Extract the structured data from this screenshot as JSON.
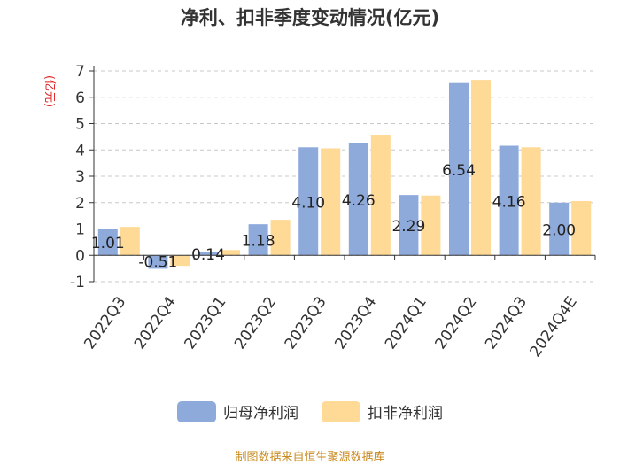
{
  "chart_data": {
    "type": "bar",
    "title": "净利、扣非季度变动情况(亿元)",
    "ylabel": "(亿元)",
    "ylabel_color": "#e02020",
    "ylim": [
      -1,
      7
    ],
    "yticks": [
      -1,
      0,
      1,
      2,
      3,
      4,
      5,
      6,
      7
    ],
    "grid": true,
    "legend_position": "bottom",
    "categories": [
      "2022Q3",
      "2022Q4",
      "2023Q1",
      "2023Q2",
      "2023Q3",
      "2023Q4",
      "2024Q1",
      "2024Q2",
      "2024Q3",
      "2024Q4E"
    ],
    "series": [
      {
        "name": "归母净利润",
        "color": "#8eaadb",
        "values": [
          1.01,
          -0.51,
          0.14,
          1.18,
          4.1,
          4.26,
          2.29,
          6.54,
          4.16,
          2.0
        ],
        "labels": [
          "1.01",
          "-0.51",
          "0.14",
          "1.18",
          "4.10",
          "4.26",
          "2.29",
          "6.54",
          "4.16",
          "2.00"
        ]
      },
      {
        "name": "扣非净利润",
        "color": "#ffd996",
        "values": [
          1.08,
          -0.4,
          0.2,
          1.35,
          4.06,
          4.58,
          2.27,
          6.66,
          4.1,
          2.06
        ]
      }
    ]
  },
  "source": {
    "text": "制图数据来自恒生聚源数据库",
    "color": "#c98a1e"
  }
}
